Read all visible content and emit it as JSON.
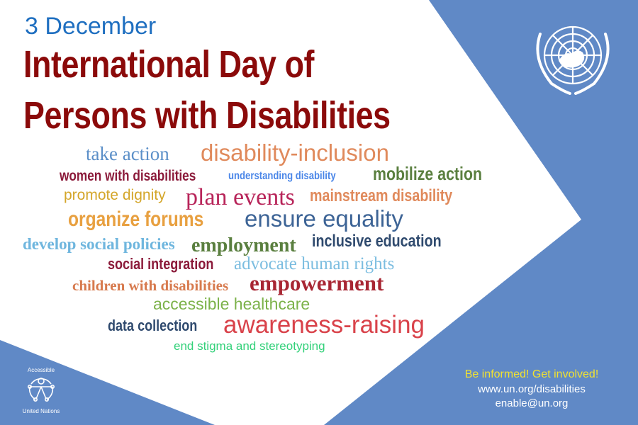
{
  "header": {
    "date": "3 December",
    "title_line1": "International Day of",
    "title_line2": "Persons with Disabilities"
  },
  "colors": {
    "background_blue": "#6089c6",
    "date_blue": "#1f6fc0",
    "title_red": "#8b0a0a",
    "tagline_yellow": "#f2e230"
  },
  "emblem": {
    "icon": "un-emblem-icon"
  },
  "accessible_logo": {
    "top": "Accessible",
    "bottom": "United Nations",
    "icon": "accessibility-person-icon"
  },
  "word_cloud": [
    {
      "text": "take action",
      "color": "#5b8fc8"
    },
    {
      "text": "disability-inclusion",
      "color": "#e08a5c"
    },
    {
      "text": "women with disabilities",
      "color": "#8b1a3a"
    },
    {
      "text": "understanding disability",
      "color": "#4a86e8"
    },
    {
      "text": "mobilize action",
      "color": "#5a7f3f"
    },
    {
      "text": "promote dignity",
      "color": "#d4a62a"
    },
    {
      "text": "plan events",
      "color": "#b8255a"
    },
    {
      "text": "mainstream disability",
      "color": "#e08a5c"
    },
    {
      "text": "organize forums",
      "color": "#e8a040"
    },
    {
      "text": "ensure equality",
      "color": "#3d6496"
    },
    {
      "text": "develop social policies",
      "color": "#6fb6de"
    },
    {
      "text": "employment",
      "color": "#5a7f3f"
    },
    {
      "text": "inclusive education",
      "color": "#2f4a6e"
    },
    {
      "text": "social integration",
      "color": "#8b1a3a"
    },
    {
      "text": "advocate human rights",
      "color": "#7bbde0"
    },
    {
      "text": "children with disabilities",
      "color": "#d77a4e"
    },
    {
      "text": "empowerment",
      "color": "#a82633"
    },
    {
      "text": "accessible healthcare",
      "color": "#7cb24a"
    },
    {
      "text": "data collection",
      "color": "#2f4a6e"
    },
    {
      "text": "awareness-raising",
      "color": "#d9424a"
    },
    {
      "text": "end stigma and stereotyping",
      "color": "#33d17a"
    }
  ],
  "contact": {
    "tagline": "Be informed! Get involved!",
    "url": "www.un.org/disabilities",
    "email": "enable@un.org"
  }
}
